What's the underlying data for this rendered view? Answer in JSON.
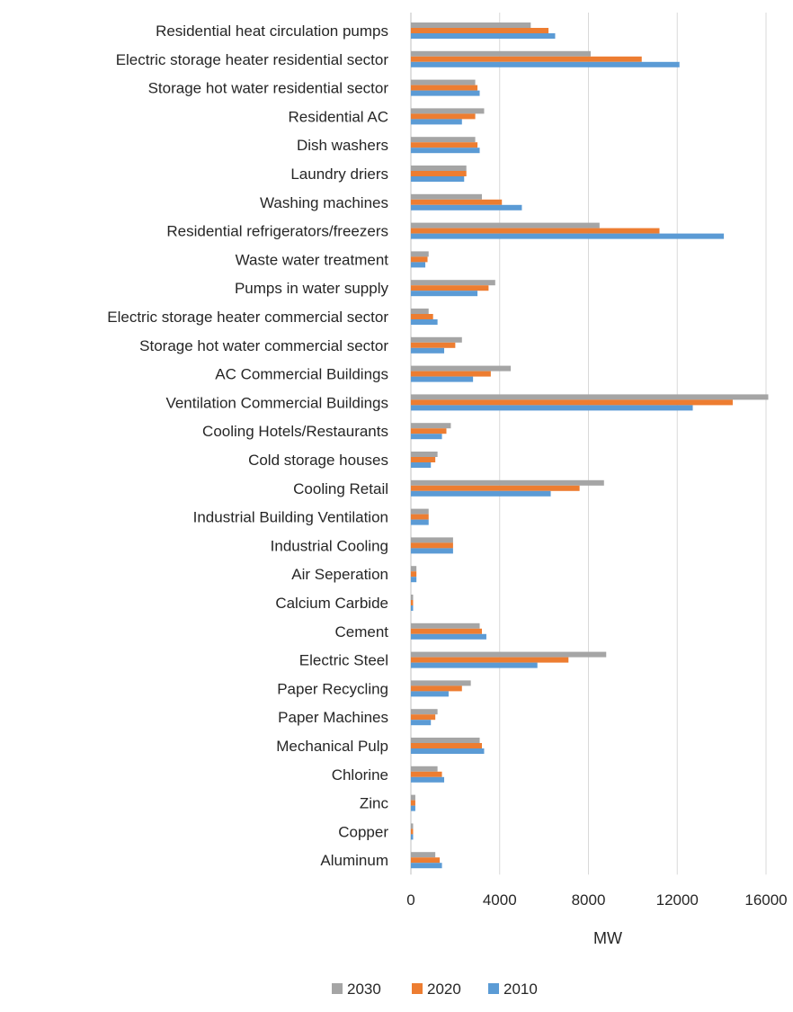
{
  "chart_data": {
    "type": "bar",
    "orientation": "horizontal",
    "xlabel": "MW",
    "xlim": [
      0,
      16000
    ],
    "xticks": [
      0,
      4000,
      8000,
      12000,
      16000
    ],
    "grid": true,
    "legend_position": "bottom",
    "categories": [
      "Residential heat circulation pumps",
      "Electric storage heater residential sector",
      "Storage hot water residential sector",
      "Residential AC",
      "Dish washers",
      "Laundry driers",
      "Washing machines",
      "Residential refrigerators/freezers",
      "Waste water treatment",
      "Pumps in water supply",
      "Electric storage heater commercial sector",
      "Storage hot water commercial sector",
      "AC Commercial Buildings",
      "Ventilation Commercial Buildings",
      "Cooling Hotels/Restaurants",
      "Cold storage houses",
      "Cooling Retail",
      "Industrial Building Ventilation",
      "Industrial Cooling",
      "Air Seperation",
      "Calcium Carbide",
      "Cement",
      "Electric Steel",
      "Paper Recycling",
      "Paper Machines",
      "Mechanical Pulp",
      "Chlorine",
      "Zinc",
      "Copper",
      "Aluminum"
    ],
    "series": [
      {
        "name": "2030",
        "color": "#a5a5a5",
        "values": [
          5400,
          8100,
          2900,
          3300,
          2900,
          2500,
          3200,
          8500,
          800,
          3800,
          800,
          2300,
          4500,
          16100,
          1800,
          1200,
          8700,
          800,
          1900,
          250,
          100,
          3100,
          8800,
          2700,
          1200,
          3100,
          1200,
          200,
          100,
          1100
        ]
      },
      {
        "name": "2020",
        "color": "#ed7d31",
        "values": [
          6200,
          10400,
          3000,
          2900,
          3000,
          2500,
          4100,
          11200,
          750,
          3500,
          1000,
          2000,
          3600,
          14500,
          1600,
          1100,
          7600,
          800,
          1900,
          250,
          100,
          3200,
          7100,
          2300,
          1100,
          3200,
          1400,
          200,
          100,
          1300
        ]
      },
      {
        "name": "2010",
        "color": "#5b9bd5",
        "values": [
          6500,
          12100,
          3100,
          2300,
          3100,
          2400,
          5000,
          14100,
          650,
          3000,
          1200,
          1500,
          2800,
          12700,
          1400,
          900,
          6300,
          800,
          1900,
          250,
          100,
          3400,
          5700,
          1700,
          900,
          3300,
          1500,
          200,
          100,
          1400
        ]
      }
    ]
  }
}
